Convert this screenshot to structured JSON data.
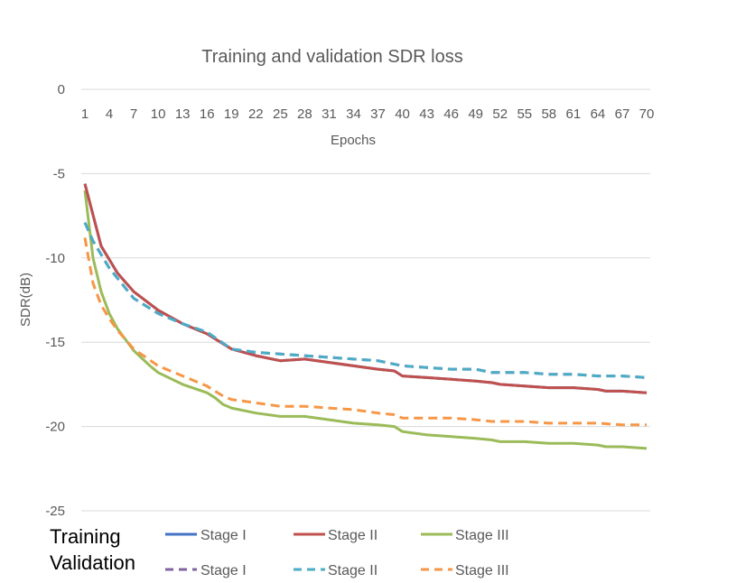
{
  "chart_data": {
    "type": "line",
    "title": "Training and validation SDR loss",
    "xlabel": "Epochs",
    "ylabel": "SDR(dB)",
    "ylim": [
      -25,
      0
    ],
    "yticks": [
      "0",
      "-5",
      "-10",
      "-15",
      "-20",
      "-25"
    ],
    "xlim": [
      1,
      70
    ],
    "xticks": [
      "1",
      "4",
      "7",
      "10",
      "13",
      "16",
      "19",
      "22",
      "25",
      "28",
      "31",
      "34",
      "37",
      "40",
      "43",
      "46",
      "49",
      "52",
      "55",
      "58",
      "61",
      "64",
      "67",
      "70"
    ],
    "x_axis_position": "top",
    "grid": "horizontal",
    "legend_placement": "bottom",
    "legend_groups": [
      "Training",
      "Validation"
    ],
    "series": [
      {
        "name": "Stage I",
        "group": "Training",
        "style": "solid",
        "color": "#4472C4",
        "x": [
          1,
          3,
          5,
          7,
          10,
          13,
          16,
          17,
          19,
          22,
          25,
          28,
          31,
          34,
          37,
          39,
          40,
          43,
          46,
          49,
          51,
          52,
          55,
          58,
          61,
          64,
          65,
          67,
          70
        ],
        "y": [
          -5.6,
          -9.3,
          -10.9,
          -12.0,
          -13.1,
          -13.9,
          -14.5,
          -14.8,
          -15.4,
          -15.8,
          -16.1,
          -16.0,
          -16.2,
          -16.4,
          -16.6,
          -16.7,
          -17.0,
          -17.1,
          -17.2,
          -17.3,
          -17.4,
          -17.5,
          -17.6,
          -17.7,
          -17.7,
          -17.8,
          -17.9,
          -17.9,
          -18.0
        ]
      },
      {
        "name": "Stage II",
        "group": "Training",
        "style": "solid",
        "color": "#C0504D",
        "x": [
          1,
          3,
          5,
          7,
          10,
          13,
          16,
          17,
          19,
          22,
          25,
          28,
          31,
          34,
          37,
          39,
          40,
          43,
          46,
          49,
          51,
          52,
          55,
          58,
          61,
          64,
          65,
          67,
          70
        ],
        "y": [
          -5.6,
          -9.3,
          -10.9,
          -12.0,
          -13.1,
          -13.9,
          -14.5,
          -14.8,
          -15.4,
          -15.8,
          -16.1,
          -16.0,
          -16.2,
          -16.4,
          -16.6,
          -16.7,
          -17.0,
          -17.1,
          -17.2,
          -17.3,
          -17.4,
          -17.5,
          -17.6,
          -17.7,
          -17.7,
          -17.8,
          -17.9,
          -17.9,
          -18.0
        ]
      },
      {
        "name": "Stage III",
        "group": "Training",
        "style": "solid",
        "color": "#9BBB59",
        "x": [
          1,
          2,
          3,
          4,
          5,
          7,
          9,
          10,
          13,
          16,
          17,
          18,
          19,
          22,
          25,
          28,
          31,
          34,
          37,
          39,
          40,
          43,
          46,
          49,
          51,
          52,
          55,
          58,
          61,
          64,
          65,
          67,
          70
        ],
        "y": [
          -6.0,
          -10.0,
          -12.0,
          -13.3,
          -14.2,
          -15.5,
          -16.4,
          -16.8,
          -17.5,
          -18.0,
          -18.3,
          -18.7,
          -18.9,
          -19.2,
          -19.4,
          -19.4,
          -19.6,
          -19.8,
          -19.9,
          -20.0,
          -20.3,
          -20.5,
          -20.6,
          -20.7,
          -20.8,
          -20.9,
          -20.9,
          -21.0,
          -21.0,
          -21.1,
          -21.2,
          -21.2,
          -21.3
        ]
      },
      {
        "name": "Stage I",
        "group": "Validation",
        "style": "dashed",
        "color": "#8064A2",
        "x": [
          1,
          2,
          4,
          7,
          10,
          13,
          16,
          19,
          22,
          25,
          28,
          31,
          34,
          37,
          40,
          43,
          46,
          49,
          51,
          52,
          55,
          58,
          61,
          64,
          67,
          70
        ],
        "y": [
          -7.9,
          -9.0,
          -10.6,
          -12.4,
          -13.3,
          -13.9,
          -14.4,
          -15.4,
          -15.6,
          -15.7,
          -15.8,
          -15.9,
          -16.0,
          -16.1,
          -16.4,
          -16.5,
          -16.6,
          -16.6,
          -16.8,
          -16.8,
          -16.8,
          -16.9,
          -16.9,
          -17.0,
          -17.0,
          -17.1
        ]
      },
      {
        "name": "Stage II",
        "group": "Validation",
        "style": "dashed",
        "color": "#4BACC6",
        "x": [
          1,
          2,
          4,
          7,
          10,
          13,
          16,
          19,
          22,
          25,
          28,
          31,
          34,
          37,
          40,
          43,
          46,
          49,
          51,
          52,
          55,
          58,
          61,
          64,
          67,
          70
        ],
        "y": [
          -7.9,
          -9.0,
          -10.6,
          -12.4,
          -13.3,
          -13.9,
          -14.4,
          -15.4,
          -15.6,
          -15.7,
          -15.8,
          -15.9,
          -16.0,
          -16.1,
          -16.4,
          -16.5,
          -16.6,
          -16.6,
          -16.8,
          -16.8,
          -16.8,
          -16.9,
          -16.9,
          -17.0,
          -17.0,
          -17.1
        ]
      },
      {
        "name": "Stage III",
        "group": "Validation",
        "style": "dashed",
        "color": "#F79646",
        "x": [
          1,
          2,
          3,
          4,
          5,
          7,
          10,
          13,
          16,
          18,
          19,
          22,
          25,
          28,
          31,
          34,
          37,
          39,
          40,
          43,
          46,
          49,
          51,
          52,
          55,
          58,
          61,
          64,
          67,
          70
        ],
        "y": [
          -8.8,
          -11.5,
          -12.8,
          -13.6,
          -14.3,
          -15.4,
          -16.4,
          -17.0,
          -17.6,
          -18.2,
          -18.4,
          -18.6,
          -18.8,
          -18.8,
          -18.9,
          -19.0,
          -19.2,
          -19.3,
          -19.5,
          -19.5,
          -19.5,
          -19.6,
          -19.7,
          -19.7,
          -19.7,
          -19.8,
          -19.8,
          -19.8,
          -19.9,
          -19.9
        ]
      }
    ]
  }
}
